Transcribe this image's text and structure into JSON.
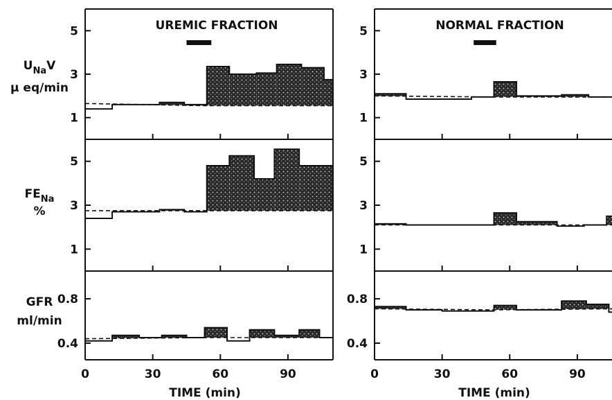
{
  "chart_data": {
    "type": "step",
    "x_unit_label": "TIME (min)",
    "xlim": [
      0,
      110
    ],
    "x_ticks": [
      0,
      30,
      60,
      90
    ],
    "panels": [
      {
        "title": "UREMIC FRACTION",
        "infusion_bar_min": [
          45,
          56
        ],
        "rows": [
          {
            "ylabel": [
              "U",
              "Na",
              "V",
              "µ eq/min"
            ],
            "ylim": [
              0,
              6
            ],
            "y_ticks": [
              1,
              3,
              5
            ],
            "baseline": [
              [
                0,
                1.65
              ],
              [
                52,
                1.55
              ],
              [
                110,
                1.55
              ]
            ],
            "steps": [
              [
                0,
                12,
                1.4
              ],
              [
                12,
                33,
                1.6
              ],
              [
                33,
                44,
                1.7
              ],
              [
                44,
                54,
                1.6
              ],
              [
                54,
                64,
                3.35
              ],
              [
                64,
                76,
                3.0
              ],
              [
                76,
                85,
                3.05
              ],
              [
                85,
                96,
                3.45
              ],
              [
                96,
                106,
                3.3
              ],
              [
                106,
                110,
                2.75
              ]
            ]
          },
          {
            "ylabel": [
              "FE",
              "Na",
              "",
              "%"
            ],
            "ylim": [
              0,
              6
            ],
            "y_ticks": [
              1,
              3,
              5
            ],
            "baseline": [
              [
                0,
                2.75
              ],
              [
                52,
                2.75
              ],
              [
                110,
                2.75
              ]
            ],
            "steps": [
              [
                0,
                12,
                2.4
              ],
              [
                12,
                33,
                2.7
              ],
              [
                33,
                44,
                2.8
              ],
              [
                44,
                54,
                2.7
              ],
              [
                54,
                64,
                4.8
              ],
              [
                64,
                75,
                5.25
              ],
              [
                75,
                84,
                4.2
              ],
              [
                84,
                95,
                5.55
              ],
              [
                95,
                110,
                4.8
              ]
            ]
          },
          {
            "ylabel": [
              "GFR",
              "",
              "",
              "ml/min"
            ],
            "ylim": [
              0.25,
              1.05
            ],
            "y_ticks": [
              0.4,
              0.8
            ],
            "y_tick_labels": [
              "0.4",
              "0.8"
            ],
            "baseline": [
              [
                0,
                0.44
              ],
              [
                52,
                0.45
              ],
              [
                110,
                0.45
              ]
            ],
            "steps": [
              [
                0,
                12,
                0.42
              ],
              [
                12,
                24,
                0.47
              ],
              [
                24,
                34,
                0.45
              ],
              [
                34,
                45,
                0.47
              ],
              [
                45,
                53,
                0.45
              ],
              [
                53,
                63,
                0.54
              ],
              [
                63,
                73,
                0.42
              ],
              [
                73,
                84,
                0.52
              ],
              [
                84,
                95,
                0.47
              ],
              [
                95,
                104,
                0.52
              ],
              [
                104,
                110,
                0.45
              ]
            ]
          }
        ]
      },
      {
        "title": "NORMAL FRACTION",
        "infusion_bar_min": [
          44,
          54
        ],
        "rows": [
          {
            "ylim": [
              0,
              6
            ],
            "y_ticks": [
              1,
              3,
              5
            ],
            "baseline": [
              [
                0,
                2.0
              ],
              [
                52,
                1.95
              ],
              [
                110,
                1.95
              ]
            ],
            "steps": [
              [
                0,
                14,
                2.1
              ],
              [
                14,
                43,
                1.85
              ],
              [
                43,
                53,
                1.95
              ],
              [
                53,
                63,
                2.65
              ],
              [
                63,
                83,
                2.0
              ],
              [
                83,
                95,
                2.05
              ],
              [
                95,
                110,
                1.95
              ]
            ]
          },
          {
            "ylim": [
              0,
              6
            ],
            "y_ticks": [
              1,
              3,
              5
            ],
            "baseline": [
              [
                0,
                2.1
              ],
              [
                52,
                2.1
              ],
              [
                110,
                2.1
              ]
            ],
            "steps": [
              [
                0,
                14,
                2.15
              ],
              [
                14,
                53,
                2.1
              ],
              [
                53,
                63,
                2.65
              ],
              [
                63,
                81,
                2.25
              ],
              [
                81,
                93,
                2.05
              ],
              [
                93,
                103,
                2.1
              ],
              [
                103,
                110,
                2.5
              ]
            ]
          },
          {
            "ylim": [
              0.25,
              1.05
            ],
            "y_ticks": [
              0.4,
              0.8
            ],
            "y_tick_labels": [
              "0.4",
              "0.8"
            ],
            "baseline": [
              [
                0,
                0.71
              ],
              [
                52,
                0.7
              ],
              [
                110,
                0.71
              ]
            ],
            "steps": [
              [
                0,
                14,
                0.73
              ],
              [
                14,
                30,
                0.7
              ],
              [
                30,
                53,
                0.69
              ],
              [
                53,
                63,
                0.74
              ],
              [
                63,
                83,
                0.7
              ],
              [
                83,
                94,
                0.78
              ],
              [
                94,
                104,
                0.75
              ],
              [
                104,
                110,
                0.68
              ]
            ]
          }
        ]
      }
    ]
  }
}
